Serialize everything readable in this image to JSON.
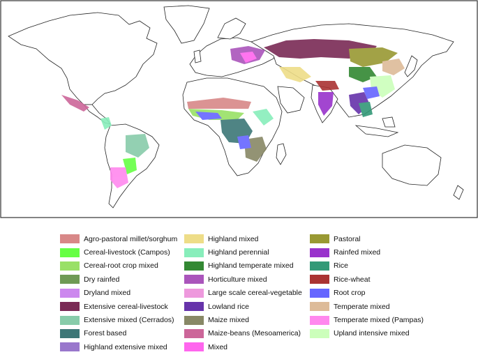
{
  "legend": {
    "columns": [
      [
        {
          "label": "Agro-pastoral millet/sorghum",
          "color": "#d88888"
        },
        {
          "label": "Cereal-livestock (Campos)",
          "color": "#66ff44"
        },
        {
          "label": "Cereal-root crop mixed",
          "color": "#99e066"
        },
        {
          "label": "Dry rainfed",
          "color": "#6f9a55"
        },
        {
          "label": "Dryland mixed",
          "color": "#cc88ee"
        },
        {
          "label": "Extensive cereal-livestock",
          "color": "#7a2a55"
        },
        {
          "label": "Extensive mixed (Cerrados)",
          "color": "#88ccaa"
        },
        {
          "label": "Forest based",
          "color": "#3d7777"
        },
        {
          "label": "Highland extensive mixed",
          "color": "#9977cc"
        }
      ],
      [
        {
          "label": "Highland mixed",
          "color": "#eedd88"
        },
        {
          "label": "Highland perennial",
          "color": "#88eebb"
        },
        {
          "label": "Highland temperate mixed",
          "color": "#338833"
        },
        {
          "label": "Horticulture mixed",
          "color": "#aa55bb"
        },
        {
          "label": "Large scale cereal-vegetable",
          "color": "#ee99dd"
        },
        {
          "label": "Lowland rice",
          "color": "#6633aa"
        },
        {
          "label": "Maize mixed",
          "color": "#888866"
        },
        {
          "label": "Maize-beans (Mesoamerica)",
          "color": "#cc6699"
        },
        {
          "label": "Mixed",
          "color": "#ff66ee"
        }
      ],
      [
        {
          "label": "Pastoral",
          "color": "#999933"
        },
        {
          "label": "Rainfed mixed",
          "color": "#9933cc"
        },
        {
          "label": "Rice",
          "color": "#339977"
        },
        {
          "label": "Rice-wheat",
          "color": "#aa3333"
        },
        {
          "label": "Root crop",
          "color": "#6666ff"
        },
        {
          "label": "Temperate mixed",
          "color": "#ddbb99"
        },
        {
          "label": "Temperate mixed (Pampas)",
          "color": "#ff88ee"
        },
        {
          "label": "Upland intensive mixed",
          "color": "#ccffbb"
        }
      ]
    ]
  }
}
